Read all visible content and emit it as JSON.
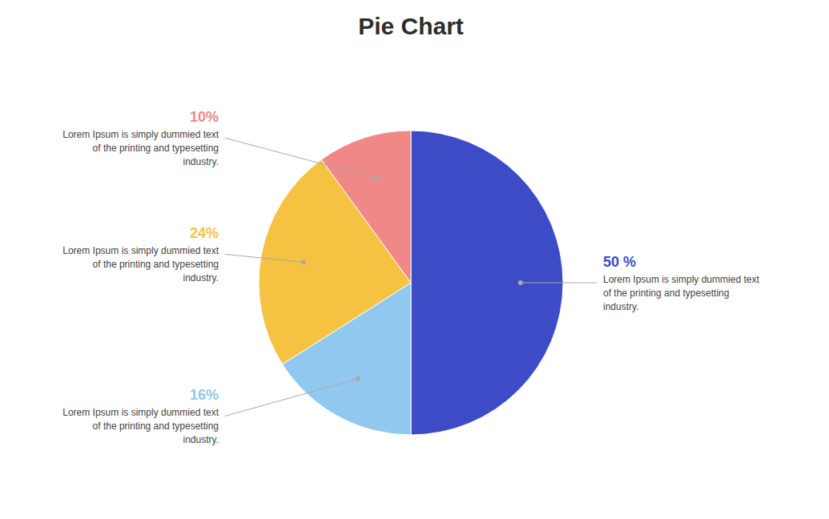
{
  "chart_data": {
    "type": "pie",
    "title": "Pie Chart",
    "values": [
      50,
      16,
      24,
      10
    ],
    "value_labels": [
      "50 %",
      "16%",
      "24%",
      "10%"
    ],
    "colors": [
      "#3d4bc7",
      "#90c8f0",
      "#f5c242",
      "#f08888"
    ],
    "data_labels": true,
    "annotations": [
      "Lorem Ipsum is simply dummied text\nof the printing and typesetting\nindustry.",
      "Lorem Ipsum is simply dummied text\nof the printing and typesetting\nindustry.",
      "Lorem Ipsum is simply dummied text\nof the printing and typesetting\nindustry.",
      "Lorem Ipsum is simply dummied text\nof the printing and typesetting\nindustry."
    ]
  }
}
